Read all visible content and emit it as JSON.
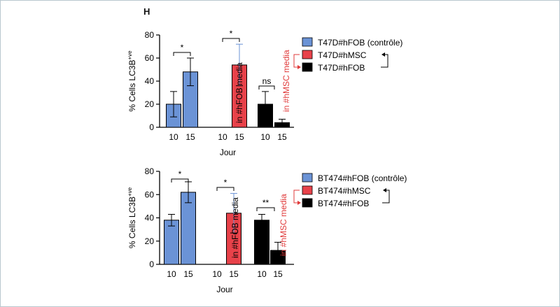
{
  "panel_label": "H",
  "colors": {
    "blue": "#6b93d6",
    "red": "#e8424a",
    "black": "#000000",
    "annotation_red": "#e03a3a"
  },
  "chart_data": [
    {
      "type": "bar",
      "title": "",
      "xlabel": "Jour",
      "ylabel": "% Cells LC3B+ve",
      "ylim": [
        0,
        80
      ],
      "yticks": [
        0,
        20,
        40,
        60,
        80
      ],
      "groups": [
        {
          "name": "T47D#hFOB (contrôle)",
          "color": "blue",
          "bars": [
            {
              "day": "10",
              "value": 20,
              "error": 11
            },
            {
              "day": "15",
              "value": 48,
              "error": 12
            }
          ]
        },
        {
          "name": "T47D#hMSC",
          "color": "red",
          "bars": [
            {
              "day": "10",
              "value": 0,
              "error": 0
            },
            {
              "day": "15",
              "value": 54,
              "error": 18
            }
          ]
        },
        {
          "name": "T47D#hFOB",
          "color": "black",
          "bars": [
            {
              "day": "10",
              "value": 20,
              "error": 11
            },
            {
              "day": "15",
              "value": 4,
              "error": 3
            }
          ]
        }
      ],
      "significance": [
        "*",
        "*",
        "ns"
      ],
      "bar_annotations": [
        "in #hFOB media",
        "in #hMSC media"
      ],
      "legend": [
        "T47D#hFOB (contrôle)",
        "T47D#hMSC",
        "T47D#hFOB"
      ]
    },
    {
      "type": "bar",
      "title": "",
      "xlabel": "Jour",
      "ylabel": "% Cells LC3B+ve",
      "ylim": [
        0,
        80
      ],
      "yticks": [
        0,
        20,
        40,
        60,
        80
      ],
      "groups": [
        {
          "name": "BT474#hFOB (contrôle)",
          "color": "blue",
          "bars": [
            {
              "day": "10",
              "value": 38,
              "error": 5
            },
            {
              "day": "15",
              "value": 62,
              "error": 9
            }
          ]
        },
        {
          "name": "BT474#hMSC",
          "color": "red",
          "bars": [
            {
              "day": "10",
              "value": 0,
              "error": 0
            },
            {
              "day": "15",
              "value": 44,
              "error": 17
            }
          ]
        },
        {
          "name": "BT474#hFOB",
          "color": "black",
          "bars": [
            {
              "day": "10",
              "value": 38,
              "error": 5
            },
            {
              "day": "15",
              "value": 12,
              "error": 7
            }
          ]
        }
      ],
      "significance": [
        "*",
        "*",
        "**"
      ],
      "bar_annotations": [
        "in #hFOB media",
        "in #hMSC media"
      ],
      "legend": [
        "BT474#hFOB (contrôle)",
        "BT474#hMSC",
        "BT474#hFOB"
      ]
    }
  ]
}
